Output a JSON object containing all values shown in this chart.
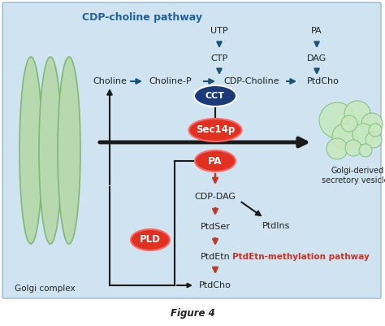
{
  "background_color": "#cfe4f0",
  "outer_bg": "#ffffff",
  "title": "Figure 4",
  "blue_pathway_label": "CDP-choline pathway",
  "red_pathway_label": "PtdEtn-methylation pathway",
  "golgi_label": "Golgi complex",
  "vesicles_label": "Golgi-derived\nsecretory vesicles",
  "arrow_blue": "#1a5276",
  "arrow_red": "#c0392b",
  "arrow_black": "#1a1a1a",
  "enzyme_red_fill": "#e03020",
  "enzyme_blue_fill": "#1a3a7a",
  "text_blue": "#2060a0",
  "text_red": "#d03020",
  "text_dark": "#222222",
  "golgi_color": "#b8d8b0",
  "golgi_edge": "#80b878",
  "vesicle_fill": "#c8e8c0",
  "vesicle_edge": "#80c080"
}
